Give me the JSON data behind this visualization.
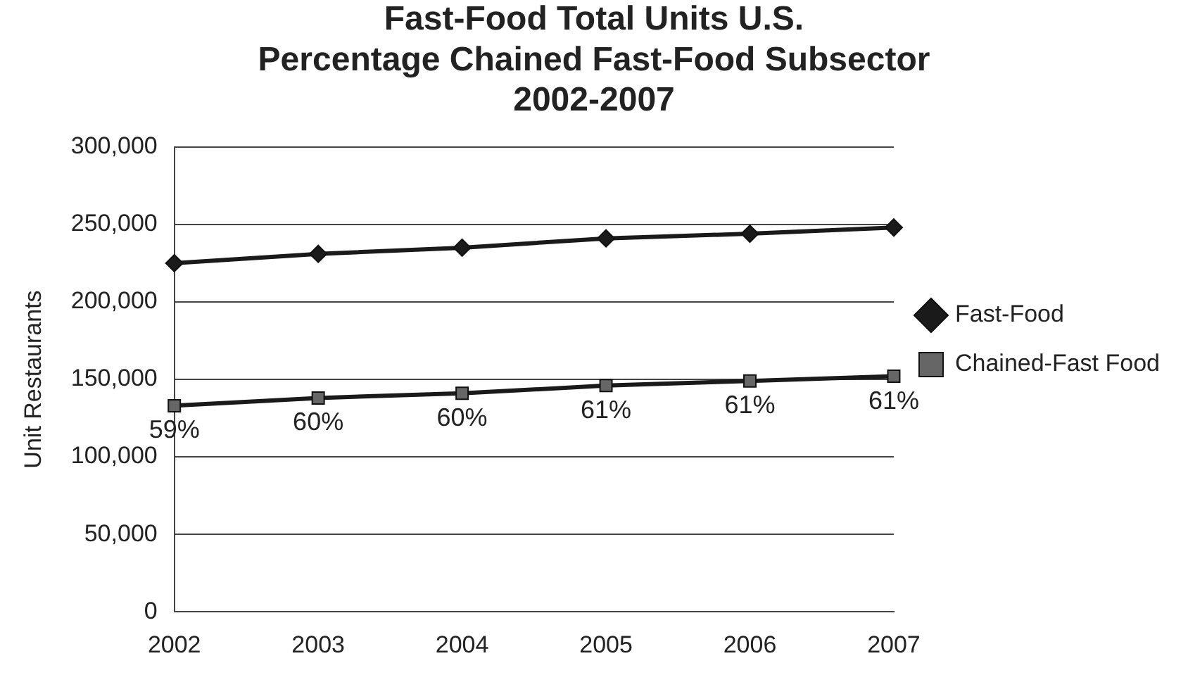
{
  "chart_data": {
    "type": "line",
    "title": "Fast-Food Total Units U.S.\nPercentage Chained Fast-Food Subsector\n2002-2007",
    "ylabel": "Unit Restaurants",
    "categories": [
      "2002",
      "2003",
      "2004",
      "2005",
      "2006",
      "2007"
    ],
    "series": [
      {
        "name": "Fast-Food",
        "color": "#1a1a1a",
        "marker": "diamond",
        "values": [
          225000,
          231000,
          235000,
          241000,
          244000,
          248000
        ]
      },
      {
        "name": "Chained-Fast Food",
        "color": "#666666",
        "marker": "square",
        "values": [
          133000,
          138000,
          141000,
          146000,
          149000,
          152000
        ]
      }
    ],
    "annotations": [
      {
        "text": "59%",
        "x": "2002",
        "y": 133000
      },
      {
        "text": "60%",
        "x": "2003",
        "y": 138000
      },
      {
        "text": "60%",
        "x": "2004",
        "y": 141000
      },
      {
        "text": "61%",
        "x": "2005",
        "y": 146000
      },
      {
        "text": "61%",
        "x": "2006",
        "y": 149000
      },
      {
        "text": "61%",
        "x": "2007",
        "y": 152000
      }
    ],
    "ylim": [
      0,
      300000
    ],
    "yticks": [
      0,
      {
        "value": 50000,
        "label": "50,000"
      },
      {
        "value": 100000,
        "label": "100,000"
      },
      {
        "value": 150000,
        "label": "150,000"
      },
      {
        "value": 200000,
        "label": "200,000"
      },
      {
        "value": 250000,
        "label": "250,000"
      },
      {
        "value": 300000,
        "label": "300,000"
      }
    ],
    "grid": "y",
    "legend": "right",
    "line_style": "solid"
  }
}
